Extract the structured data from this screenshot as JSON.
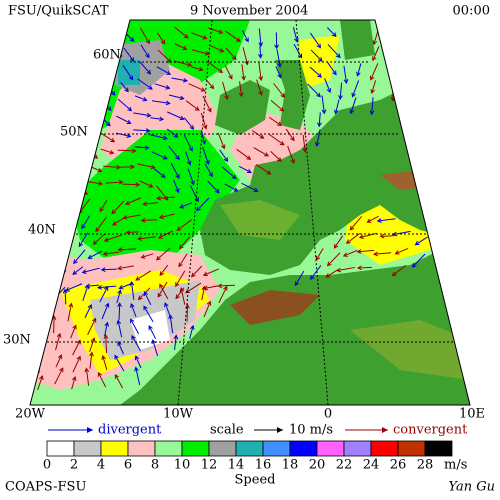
{
  "header": {
    "title": "FSU/QuikSCAT",
    "date": "9 November 2004",
    "time": "00:00"
  },
  "map": {
    "lat_labels": [
      "60N",
      "50N",
      "40N",
      "30N"
    ],
    "lon_labels": [
      "20W",
      "10W",
      "0",
      "10E"
    ]
  },
  "key": {
    "divergent": "divergent",
    "scale": "scale",
    "scale_value": "10 m/s",
    "convergent": "convergent"
  },
  "colorbar": {
    "ticks": [
      0,
      2,
      4,
      6,
      8,
      10,
      12,
      14,
      16,
      18,
      20,
      22,
      24,
      26,
      28
    ],
    "colors": [
      "#ffffff",
      "#c8c8c8",
      "#ffff00",
      "#ffc0c0",
      "#98f898",
      "#00ee00",
      "#a0a0a0",
      "#20b0b0",
      "#4090ff",
      "#0000ff",
      "#ff60ff",
      "#a080ff",
      "#ff0000",
      "#c03000",
      "#000000"
    ],
    "unit": "m/s",
    "label": "Speed"
  },
  "footer": {
    "left": "COAPS-FSU",
    "right": "Yan Gu"
  }
}
